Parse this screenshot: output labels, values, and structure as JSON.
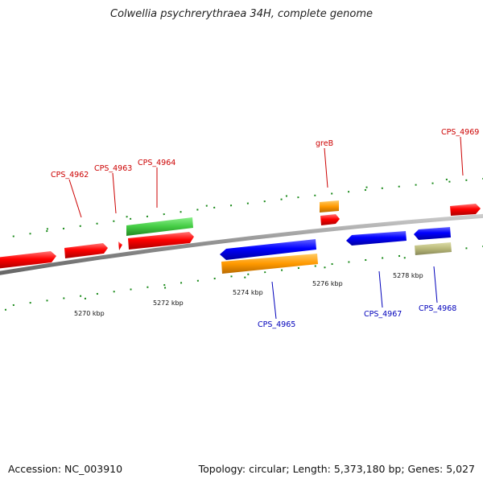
{
  "title": "Colwellia psychrerythraea 34H, complete genome",
  "footer": {
    "accession": "Accession: NC_003910",
    "summary": "Topology: circular; Length: 5,373,180 bp; Genes: 5,027"
  },
  "colors": {
    "forward_gene": "#ff0000",
    "reverse_gene": "#0000ff",
    "cds_forward": "#44cc44",
    "cds_reverse": "#ff9900",
    "other_feature": "#b8b878",
    "backbone": "#999999",
    "tick_marks": "#1a8a1a",
    "label_forward": "#cc0000",
    "label_reverse": "#0000bb"
  },
  "scale_ticks": [
    "5270 kbp",
    "5272 kbp",
    "5274 kbp",
    "5276 kbp",
    "5278 kbp"
  ],
  "gene_labels": {
    "forward": [
      "CPS_4962",
      "CPS_4963",
      "CPS_4964",
      "greB",
      "CPS_4969"
    ],
    "reverse": [
      "CPS_4965",
      "CPS_4967",
      "CPS_4968"
    ]
  }
}
